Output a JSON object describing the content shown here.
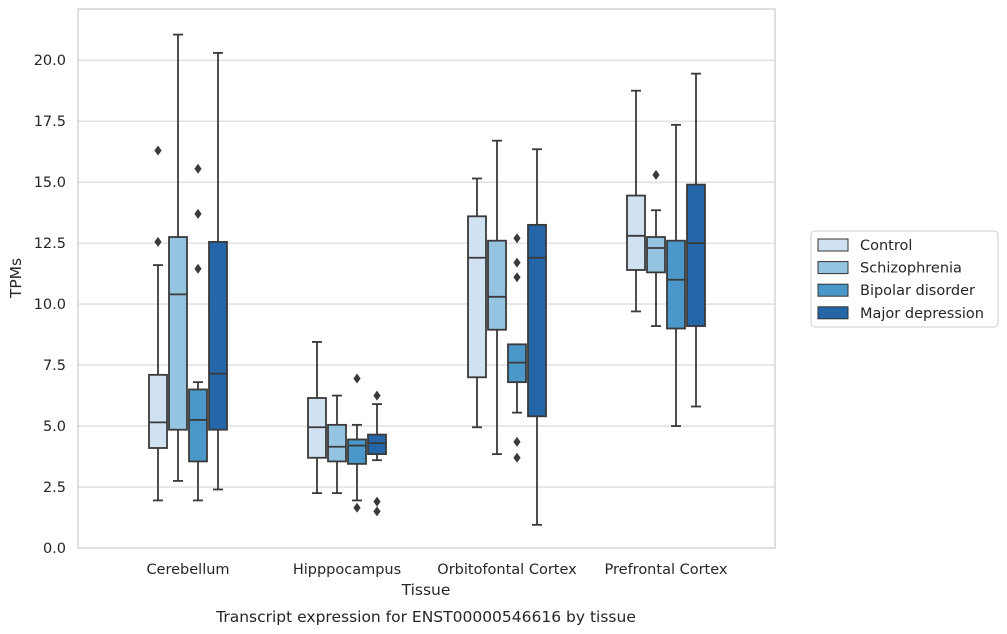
{
  "caption": "Transcript expression for ENST00000546616 by tissue",
  "chart_data": {
    "type": "box",
    "xlabel": "Tissue",
    "ylabel": "TPMs",
    "ylim": [
      0,
      22.1
    ],
    "yticks": [
      "0.0",
      "2.5",
      "5.0",
      "7.5",
      "10.0",
      "12.5",
      "15.0",
      "17.5",
      "20.0"
    ],
    "grid": true,
    "legend_position": "right",
    "categories": [
      "Cerebellum",
      "Hipppocampus",
      "Orbitofontal Cortex",
      "Prefrontal Cortex"
    ],
    "series": [
      {
        "name": "Control",
        "color": "#d0e1f2",
        "boxes": [
          {
            "whislo": 1.95,
            "q1": 4.1,
            "med": 5.15,
            "q3": 7.1,
            "whishi": 11.6,
            "fliers": [
              12.55,
              16.3
            ]
          },
          {
            "whislo": 2.25,
            "q1": 3.7,
            "med": 4.95,
            "q3": 6.15,
            "whishi": 8.45,
            "fliers": []
          },
          {
            "whislo": 4.95,
            "q1": 7.0,
            "med": 11.9,
            "q3": 13.6,
            "whishi": 15.15,
            "fliers": []
          },
          {
            "whislo": 9.7,
            "q1": 11.4,
            "med": 12.8,
            "q3": 14.45,
            "whishi": 18.75,
            "fliers": []
          }
        ]
      },
      {
        "name": "Schizophrenia",
        "color": "#94c4df",
        "boxes": [
          {
            "whislo": 2.75,
            "q1": 4.85,
            "med": 10.4,
            "q3": 12.75,
            "whishi": 21.05,
            "fliers": []
          },
          {
            "whislo": 2.25,
            "q1": 3.55,
            "med": 4.15,
            "q3": 5.05,
            "whishi": 6.25,
            "fliers": []
          },
          {
            "whislo": 3.85,
            "q1": 8.95,
            "med": 10.3,
            "q3": 12.6,
            "whishi": 16.7,
            "fliers": []
          },
          {
            "whislo": 9.1,
            "q1": 11.3,
            "med": 12.3,
            "q3": 12.75,
            "whishi": 13.85,
            "fliers": [
              15.3
            ]
          }
        ]
      },
      {
        "name": "Bipolar disorder",
        "color": "#4a98c9",
        "boxes": [
          {
            "whislo": 1.95,
            "q1": 3.55,
            "med": 5.25,
            "q3": 6.5,
            "whishi": 6.8,
            "fliers": [
              11.45,
              13.7,
              15.55
            ]
          },
          {
            "whislo": 1.95,
            "q1": 3.45,
            "med": 4.2,
            "q3": 4.45,
            "whishi": 5.05,
            "fliers": [
              1.65,
              6.95
            ]
          },
          {
            "whislo": 5.55,
            "q1": 6.8,
            "med": 7.6,
            "q3": 8.35,
            "whishi": 8.35,
            "fliers": [
              3.7,
              4.35,
              11.1,
              11.7,
              12.7
            ]
          },
          {
            "whislo": 5.0,
            "q1": 9.0,
            "med": 11.0,
            "q3": 12.6,
            "whishi": 17.35,
            "fliers": []
          }
        ]
      },
      {
        "name": "Major depression",
        "color": "#2566a8",
        "boxes": [
          {
            "whislo": 2.4,
            "q1": 4.85,
            "med": 7.15,
            "q3": 12.55,
            "whishi": 20.3,
            "fliers": []
          },
          {
            "whislo": 3.6,
            "q1": 3.85,
            "med": 4.3,
            "q3": 4.65,
            "whishi": 5.9,
            "fliers": [
              1.5,
              1.9,
              6.25
            ]
          },
          {
            "whislo": 0.95,
            "q1": 5.4,
            "med": 11.9,
            "q3": 13.25,
            "whishi": 16.35,
            "fliers": []
          },
          {
            "whislo": 5.8,
            "q1": 9.1,
            "med": 12.5,
            "q3": 14.9,
            "whishi": 19.45,
            "fliers": []
          }
        ]
      }
    ]
  }
}
